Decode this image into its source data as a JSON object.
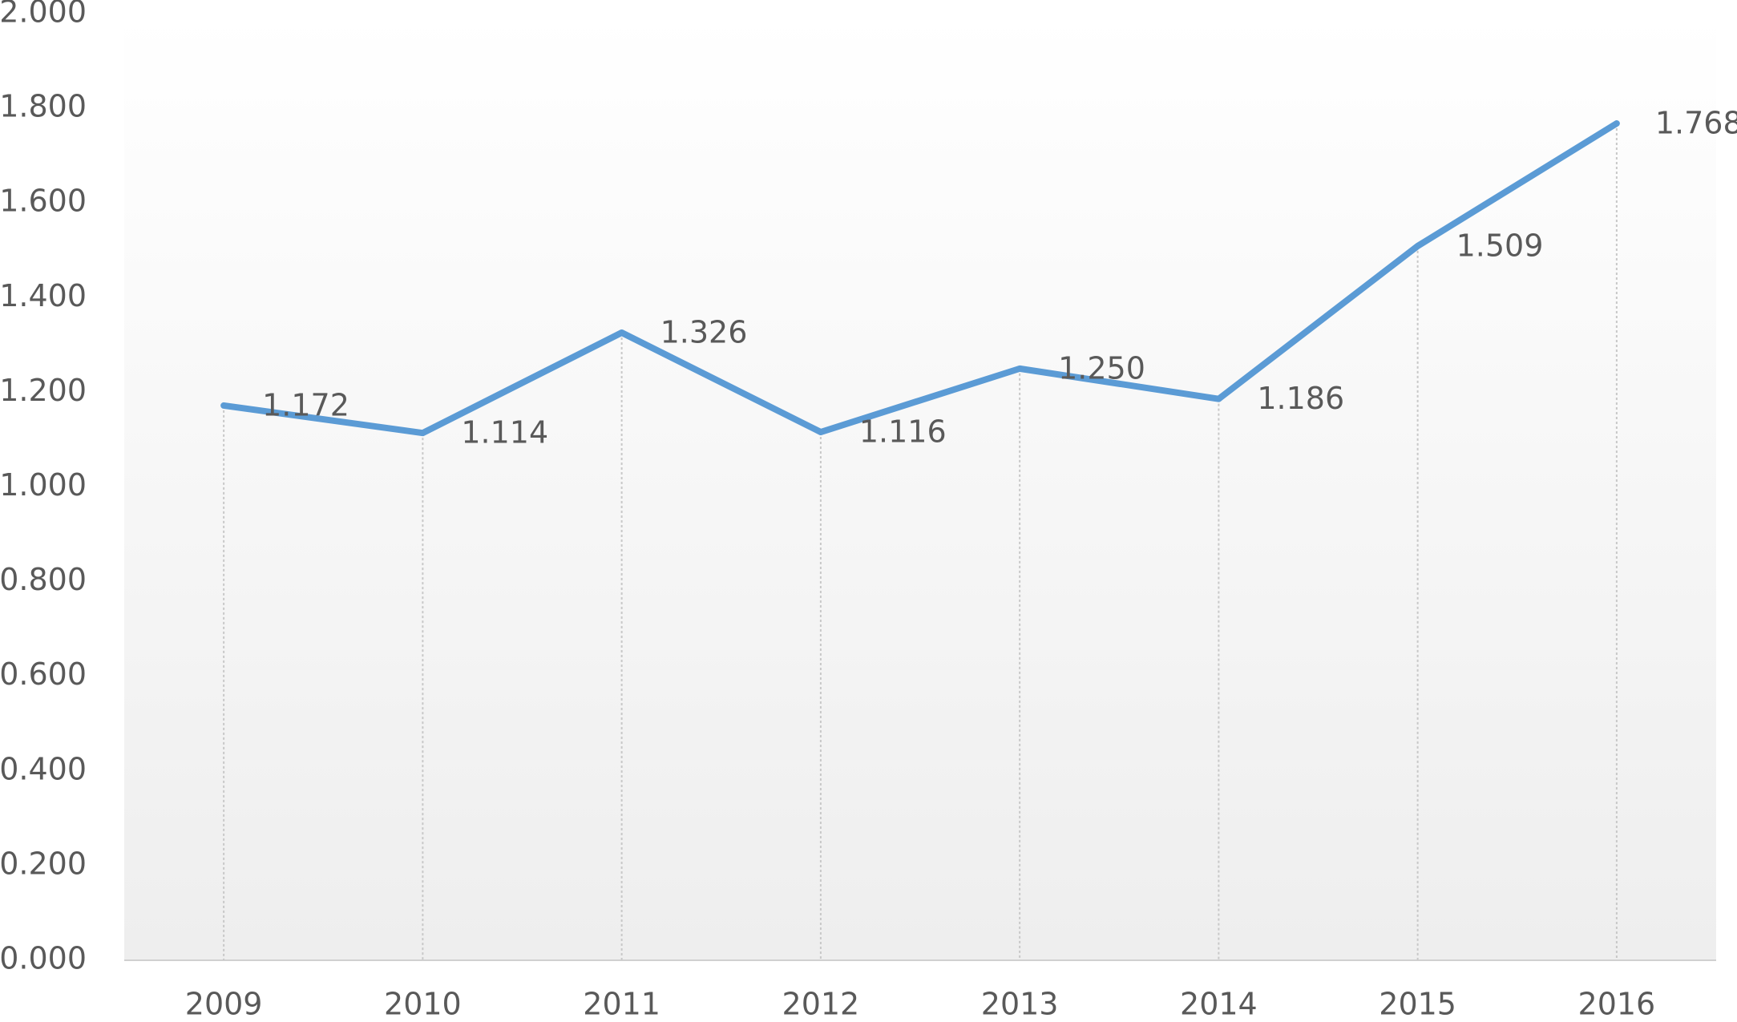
{
  "chart_data": {
    "type": "line",
    "categories": [
      "2009",
      "2010",
      "2011",
      "2012",
      "2013",
      "2014",
      "2015",
      "2016"
    ],
    "values": [
      1.172,
      1.114,
      1.326,
      1.116,
      1.25,
      1.186,
      1.509,
      1.768
    ],
    "value_labels": [
      "1.172",
      "1.114",
      "1.326",
      "1.116",
      "1.250",
      "1.186",
      "1.509",
      "1.768"
    ],
    "color": "#5b9bd5",
    "ylim": [
      0,
      2
    ],
    "yticks": [
      {
        "value": 0,
        "label": "0.000"
      },
      {
        "value": 0.2,
        "label": "0.200"
      },
      {
        "value": 0.4,
        "label": "0.400"
      },
      {
        "value": 0.6,
        "label": "0.600"
      },
      {
        "value": 0.8,
        "label": "0.800"
      },
      {
        "value": 1,
        "label": "1.000"
      },
      {
        "value": 1.2,
        "label": "1.200"
      },
      {
        "value": 1.4,
        "label": "1.400"
      },
      {
        "value": 1.6,
        "label": "1.600"
      },
      {
        "value": 1.8,
        "label": "1.800"
      },
      {
        "value": 2,
        "label": "2.000"
      }
    ],
    "drop_lines": true
  }
}
